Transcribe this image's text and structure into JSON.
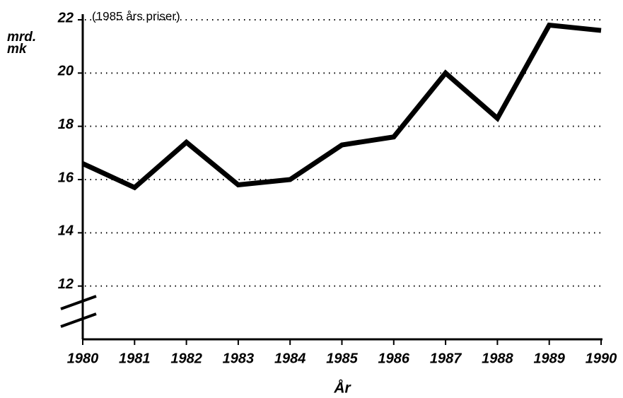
{
  "chart_data": {
    "type": "line",
    "subtitle": "(1985 års priser)",
    "ylabel": [
      "mrd.",
      "mk"
    ],
    "xlabel": "År",
    "x": [
      1980,
      1981,
      1982,
      1983,
      1984,
      1985,
      1986,
      1987,
      1988,
      1989,
      1990
    ],
    "series": [
      {
        "color": "#000000",
        "values": [
          16.6,
          15.7,
          17.4,
          15.8,
          16.0,
          17.3,
          17.6,
          20.0,
          18.3,
          21.8,
          21.6
        ]
      }
    ],
    "xlim": [
      1980,
      1990
    ],
    "xticks": [
      1980,
      1981,
      1982,
      1983,
      1984,
      1985,
      1986,
      1987,
      1988,
      1989,
      1990
    ],
    "ylim": [
      10,
      22
    ],
    "yticks": [
      12,
      14,
      16,
      18,
      20,
      22
    ],
    "grid": true
  }
}
